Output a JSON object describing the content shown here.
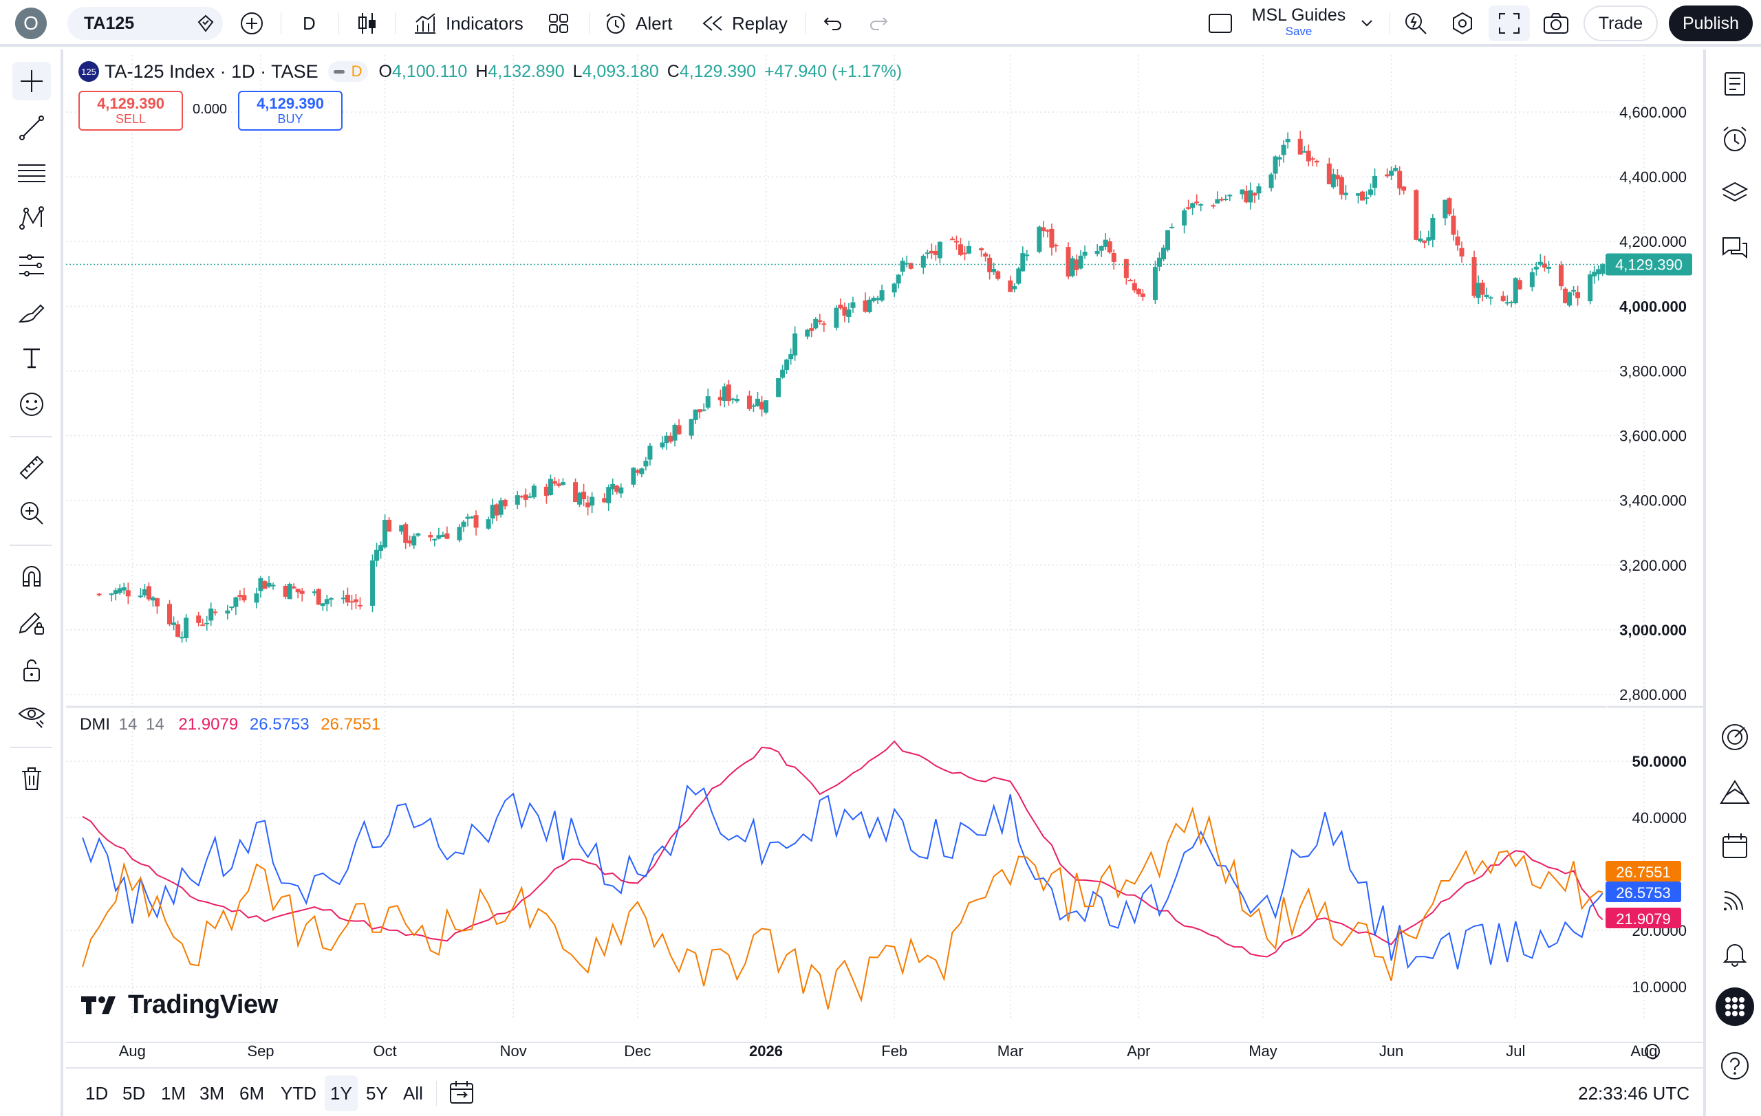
{
  "topbar": {
    "profile_initial": "O",
    "symbol": "TA125",
    "interval": "D",
    "indicators_label": "Indicators",
    "alert_label": "Alert",
    "replay_label": "Replay",
    "layout_name": "MSL Guides",
    "layout_save": "Save",
    "trade_label": "Trade",
    "publish_label": "Publish"
  },
  "legend": {
    "badge": "125",
    "title": "TA-125 Index · 1D · TASE",
    "session": "D",
    "o_label": "O",
    "o_val": "4,100.110",
    "h_label": "H",
    "h_val": "4,132.890",
    "l_label": "L",
    "l_val": "4,093.180",
    "c_label": "C",
    "c_val": "4,129.390",
    "change": "+47.940 (+1.17%)"
  },
  "trade": {
    "sell_price": "4,129.390",
    "sell_label": "SELL",
    "spread": "0.000",
    "buy_price": "4,129.390",
    "buy_label": "BUY"
  },
  "indicator": {
    "name": "DMI",
    "p1": "14",
    "p2": "14",
    "adx": "21.9079",
    "plus_di": "26.5753",
    "minus_di": "26.7551"
  },
  "colors": {
    "up": "#26a69a",
    "down": "#ef5350",
    "adx": "#e91e63",
    "plus_di": "#2962ff",
    "minus_di": "#f57c00",
    "accent": "#2962ff"
  },
  "chart_data": [
    {
      "type": "candlestick",
      "title": "TA-125 Index · 1D · TASE",
      "x": [
        "2025-07-24",
        "2025-08-04",
        "2025-08-12",
        "2025-08-20",
        "2025-09-01",
        "2025-09-12",
        "2025-09-25",
        "2025-10-01",
        "2025-10-08",
        "2025-10-20",
        "2025-11-01",
        "2025-11-12",
        "2025-11-20",
        "2025-12-01",
        "2025-12-12",
        "2025-12-22",
        "2026-01-01",
        "2026-01-07",
        "2026-01-15",
        "2026-01-25",
        "2026-02-03",
        "2026-02-12",
        "2026-02-20",
        "2026-03-01",
        "2026-03-08",
        "2026-03-15",
        "2026-03-24",
        "2026-04-01",
        "2026-04-10",
        "2026-04-20",
        "2026-05-01",
        "2026-05-06",
        "2026-05-14",
        "2026-05-22",
        "2026-06-01",
        "2026-06-08",
        "2026-06-14",
        "2026-06-20",
        "2026-06-28",
        "2026-07-06",
        "2026-07-14",
        "2026-07-22"
      ],
      "y": [
        3110,
        3130,
        3000,
        3040,
        3150,
        3110,
        3080,
        3330,
        3270,
        3320,
        3390,
        3460,
        3390,
        3510,
        3640,
        3730,
        3700,
        3880,
        3950,
        4010,
        4120,
        4170,
        4190,
        4050,
        4250,
        4120,
        4180,
        4010,
        4290,
        4330,
        4350,
        4500,
        4470,
        4300,
        4440,
        4190,
        4300,
        4060,
        4010,
        4140,
        4020,
        4129.39
      ],
      "ylim": [
        2800,
        4650
      ],
      "yticks": [
        "4,600.000",
        "4,400.000",
        "4,200.000",
        "4,000.000",
        "3,800.000",
        "3,600.000",
        "3,400.000",
        "3,200.000",
        "3,000.000",
        "2,800.000"
      ],
      "last_price": "4,129.390"
    },
    {
      "type": "line",
      "title": "DMI 14 14",
      "x": [
        "2025-07-20",
        "2025-08-01",
        "2025-08-15",
        "2025-09-01",
        "2025-09-15",
        "2025-10-01",
        "2025-10-15",
        "2025-11-01",
        "2025-11-15",
        "2025-12-01",
        "2025-12-15",
        "2026-01-01",
        "2026-01-15",
        "2026-02-01",
        "2026-02-15",
        "2026-03-01",
        "2026-03-15",
        "2026-04-01",
        "2026-04-15",
        "2026-05-01",
        "2026-05-15",
        "2026-06-01",
        "2026-06-15",
        "2026-07-01",
        "2026-07-15",
        "2026-07-22"
      ],
      "series": [
        {
          "name": "ADX",
          "values": [
            40,
            33,
            26,
            22,
            24,
            20,
            18,
            24,
            33,
            28,
            42,
            53,
            44,
            53,
            48,
            46,
            30,
            26,
            20,
            15,
            22,
            18,
            26,
            34,
            30,
            21.9079
          ]
        },
        {
          "name": "+DI",
          "values": [
            38,
            24,
            30,
            36,
            26,
            40,
            36,
            42,
            36,
            28,
            44,
            34,
            40,
            38,
            36,
            40,
            24,
            22,
            34,
            22,
            40,
            18,
            16,
            18,
            20,
            26.5753
          ]
        },
        {
          "name": "-DI",
          "values": [
            18,
            30,
            16,
            28,
            18,
            22,
            20,
            26,
            14,
            24,
            12,
            18,
            10,
            14,
            16,
            32,
            26,
            30,
            40,
            20,
            24,
            14,
            28,
            34,
            28,
            26.7551
          ]
        }
      ],
      "ylim": [
        5,
        57
      ],
      "yticks": [
        "50.0000",
        "40.0000",
        "20.0000",
        "10.0000"
      ]
    }
  ],
  "xaxis": {
    "labels": [
      "Aug",
      "Sep",
      "Oct",
      "Nov",
      "Dec",
      "2026",
      "Feb",
      "Mar",
      "Apr",
      "May",
      "Jun",
      "Jul",
      "Aug"
    ]
  },
  "ranges": [
    "1D",
    "5D",
    "1M",
    "3M",
    "6M",
    "YTD",
    "1Y",
    "5Y",
    "All"
  ],
  "clock": "22:33:46 UTC",
  "watermark": "TradingView"
}
